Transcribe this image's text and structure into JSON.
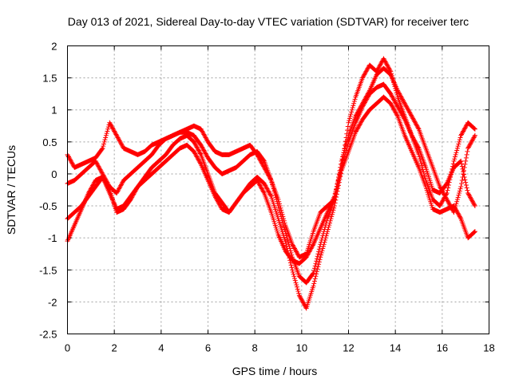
{
  "chart_data": {
    "type": "scatter",
    "title": "Day 013 of 2021, Sidereal Day-to-day VTEC variation (SDTVAR) for receiver terc",
    "xlabel": "GPS time / hours",
    "ylabel": "SDTVAR / TECUs",
    "xlim": [
      0,
      18
    ],
    "ylim": [
      -2.5,
      2
    ],
    "xticks": [
      0,
      2,
      4,
      6,
      8,
      10,
      12,
      14,
      16,
      18
    ],
    "yticks": [
      -2.5,
      -2,
      -1.5,
      -1,
      -0.5,
      0,
      0.5,
      1,
      1.5,
      2
    ],
    "xtick_labels": [
      "0",
      "2",
      "4",
      "6",
      "8",
      "10",
      "12",
      "14",
      "16",
      "18"
    ],
    "ytick_labels": [
      "-2.5",
      "-2",
      "-1.5",
      "-1",
      "-0.5",
      "0",
      "0.5",
      "1",
      "1.5",
      "2"
    ],
    "grid": true,
    "marker": "+",
    "color": "#ff0000",
    "series": [
      {
        "name": "track-1",
        "x": [
          0.0,
          0.3,
          0.6,
          0.9,
          1.2,
          1.5,
          1.8,
          2.1,
          2.4,
          2.7,
          3.0,
          3.3,
          3.6,
          3.9,
          4.2,
          4.5,
          4.8,
          5.1,
          5.4,
          5.7,
          6.0,
          6.3,
          6.6,
          6.9,
          7.2,
          7.5,
          7.8,
          8.1,
          8.4,
          8.7,
          9.0,
          9.3,
          9.6,
          9.9,
          10.2,
          10.5,
          10.8,
          11.1,
          11.4,
          11.7,
          12.0,
          12.3,
          12.6,
          12.9,
          13.2,
          13.5,
          13.8,
          14.1,
          14.4,
          14.7,
          15.0,
          15.3,
          15.6,
          15.9,
          16.2,
          16.5,
          16.8,
          17.1,
          17.4
        ],
        "y": [
          0.3,
          0.1,
          0.15,
          0.2,
          0.25,
          0.4,
          0.8,
          0.6,
          0.4,
          0.35,
          0.3,
          0.35,
          0.45,
          0.5,
          0.55,
          0.6,
          0.65,
          0.7,
          0.75,
          0.7,
          0.5,
          0.35,
          0.3,
          0.3,
          0.35,
          0.4,
          0.45,
          0.3,
          0.1,
          -0.1,
          -0.4,
          -0.8,
          -1.1,
          -1.3,
          -1.25,
          -0.9,
          -0.6,
          -0.5,
          -0.4,
          0.1,
          0.8,
          1.2,
          1.5,
          1.7,
          1.6,
          1.8,
          1.6,
          1.2,
          0.9,
          0.6,
          0.3,
          -0.1,
          -0.4,
          -0.5,
          -0.3,
          0.2,
          0.6,
          0.8,
          0.7
        ]
      },
      {
        "name": "track-2",
        "x": [
          0.0,
          0.3,
          0.6,
          0.9,
          1.2,
          1.5,
          1.8,
          2.1,
          2.4,
          2.7,
          3.0,
          3.3,
          3.6,
          3.9,
          4.2,
          4.5,
          4.8,
          5.1,
          5.4,
          5.7,
          6.0,
          6.3,
          6.6,
          6.9,
          7.2,
          7.5,
          7.8,
          8.1,
          8.4,
          8.7,
          9.0,
          9.3,
          9.6,
          9.9,
          10.2,
          10.5,
          10.8,
          11.1,
          11.4,
          11.7,
          12.0,
          12.3,
          12.6,
          12.9,
          13.2,
          13.5,
          13.8,
          14.1,
          14.4,
          14.7,
          15.0,
          15.3,
          15.6,
          15.9,
          16.2,
          16.5,
          16.8,
          17.1,
          17.4
        ],
        "y": [
          -0.15,
          -0.1,
          0.0,
          0.1,
          0.2,
          0.0,
          -0.2,
          -0.3,
          -0.1,
          0.0,
          0.1,
          0.2,
          0.3,
          0.45,
          0.55,
          0.6,
          0.65,
          0.65,
          0.6,
          0.45,
          0.25,
          0.1,
          0.0,
          0.05,
          0.1,
          0.2,
          0.3,
          0.35,
          0.2,
          -0.1,
          -0.5,
          -0.9,
          -1.3,
          -1.6,
          -1.7,
          -1.55,
          -1.1,
          -0.7,
          -0.4,
          0.2,
          0.6,
          0.9,
          1.1,
          1.3,
          1.55,
          1.65,
          1.55,
          1.3,
          1.1,
          0.9,
          0.7,
          0.4,
          0.1,
          -0.2,
          -0.4,
          -0.6,
          -0.2,
          0.4,
          0.6
        ]
      },
      {
        "name": "track-3",
        "x": [
          0.0,
          0.3,
          0.6,
          0.9,
          1.2,
          1.5,
          1.8,
          2.1,
          2.4,
          2.7,
          3.0,
          3.3,
          3.6,
          3.9,
          4.2,
          4.5,
          4.8,
          5.1,
          5.4,
          5.7,
          6.0,
          6.3,
          6.6,
          6.9,
          7.2,
          7.5,
          7.8,
          8.1,
          8.4,
          8.7,
          9.0,
          9.3,
          9.6,
          9.9,
          10.2,
          10.5,
          10.8,
          11.1,
          11.4,
          11.7,
          12.0,
          12.3,
          12.6,
          12.9,
          13.2,
          13.5,
          13.8,
          14.1,
          14.4,
          14.7,
          15.0,
          15.3,
          15.6,
          15.9,
          16.2,
          16.5,
          16.8,
          17.1,
          17.4
        ],
        "y": [
          -0.7,
          -0.6,
          -0.5,
          -0.35,
          -0.2,
          -0.05,
          -0.3,
          -0.55,
          -0.5,
          -0.35,
          -0.2,
          -0.05,
          0.1,
          0.2,
          0.3,
          0.45,
          0.55,
          0.6,
          0.5,
          0.3,
          0.0,
          -0.3,
          -0.45,
          -0.6,
          -0.45,
          -0.3,
          -0.15,
          -0.05,
          -0.15,
          -0.35,
          -0.7,
          -1.05,
          -1.5,
          -1.9,
          -2.1,
          -1.75,
          -1.3,
          -0.9,
          -0.5,
          0.05,
          0.35,
          0.65,
          0.85,
          1.0,
          1.1,
          1.2,
          1.1,
          0.9,
          0.6,
          0.35,
          0.1,
          -0.2,
          -0.55,
          -0.6,
          -0.55,
          -0.5,
          -0.7,
          -1.0,
          -0.9
        ]
      },
      {
        "name": "track-4",
        "x": [
          0.0,
          0.3,
          0.6,
          0.9,
          1.2,
          1.5,
          1.8,
          2.1,
          2.4,
          2.7,
          3.0,
          3.3,
          3.6,
          3.9,
          4.2,
          4.5,
          4.8,
          5.1,
          5.4,
          5.7,
          6.0,
          6.3,
          6.6,
          6.9,
          7.2,
          7.5,
          7.8,
          8.1,
          8.4,
          8.7,
          9.0,
          9.3,
          9.6,
          9.9,
          10.2,
          10.5,
          10.8,
          11.1,
          11.4,
          11.7,
          12.0,
          12.3,
          12.6,
          12.9,
          13.2,
          13.5,
          13.8,
          14.1,
          14.4,
          14.7,
          15.0,
          15.3,
          15.6,
          15.9,
          16.2,
          16.5,
          16.8,
          17.1,
          17.4
        ],
        "y": [
          -1.05,
          -0.8,
          -0.55,
          -0.3,
          -0.1,
          -0.05,
          -0.25,
          -0.6,
          -0.55,
          -0.4,
          -0.2,
          -0.1,
          0.0,
          0.1,
          0.2,
          0.3,
          0.4,
          0.45,
          0.35,
          0.15,
          -0.1,
          -0.35,
          -0.55,
          -0.6,
          -0.45,
          -0.3,
          -0.2,
          -0.1,
          -0.3,
          -0.6,
          -0.95,
          -1.2,
          -1.35,
          -1.4,
          -1.3,
          -1.1,
          -0.85,
          -0.6,
          -0.35,
          0.1,
          0.5,
          0.8,
          1.05,
          1.25,
          1.35,
          1.4,
          1.25,
          1.05,
          0.85,
          0.6,
          0.4,
          0.1,
          -0.25,
          -0.3,
          -0.15,
          0.1,
          0.2,
          -0.3,
          -0.5
        ]
      }
    ]
  }
}
